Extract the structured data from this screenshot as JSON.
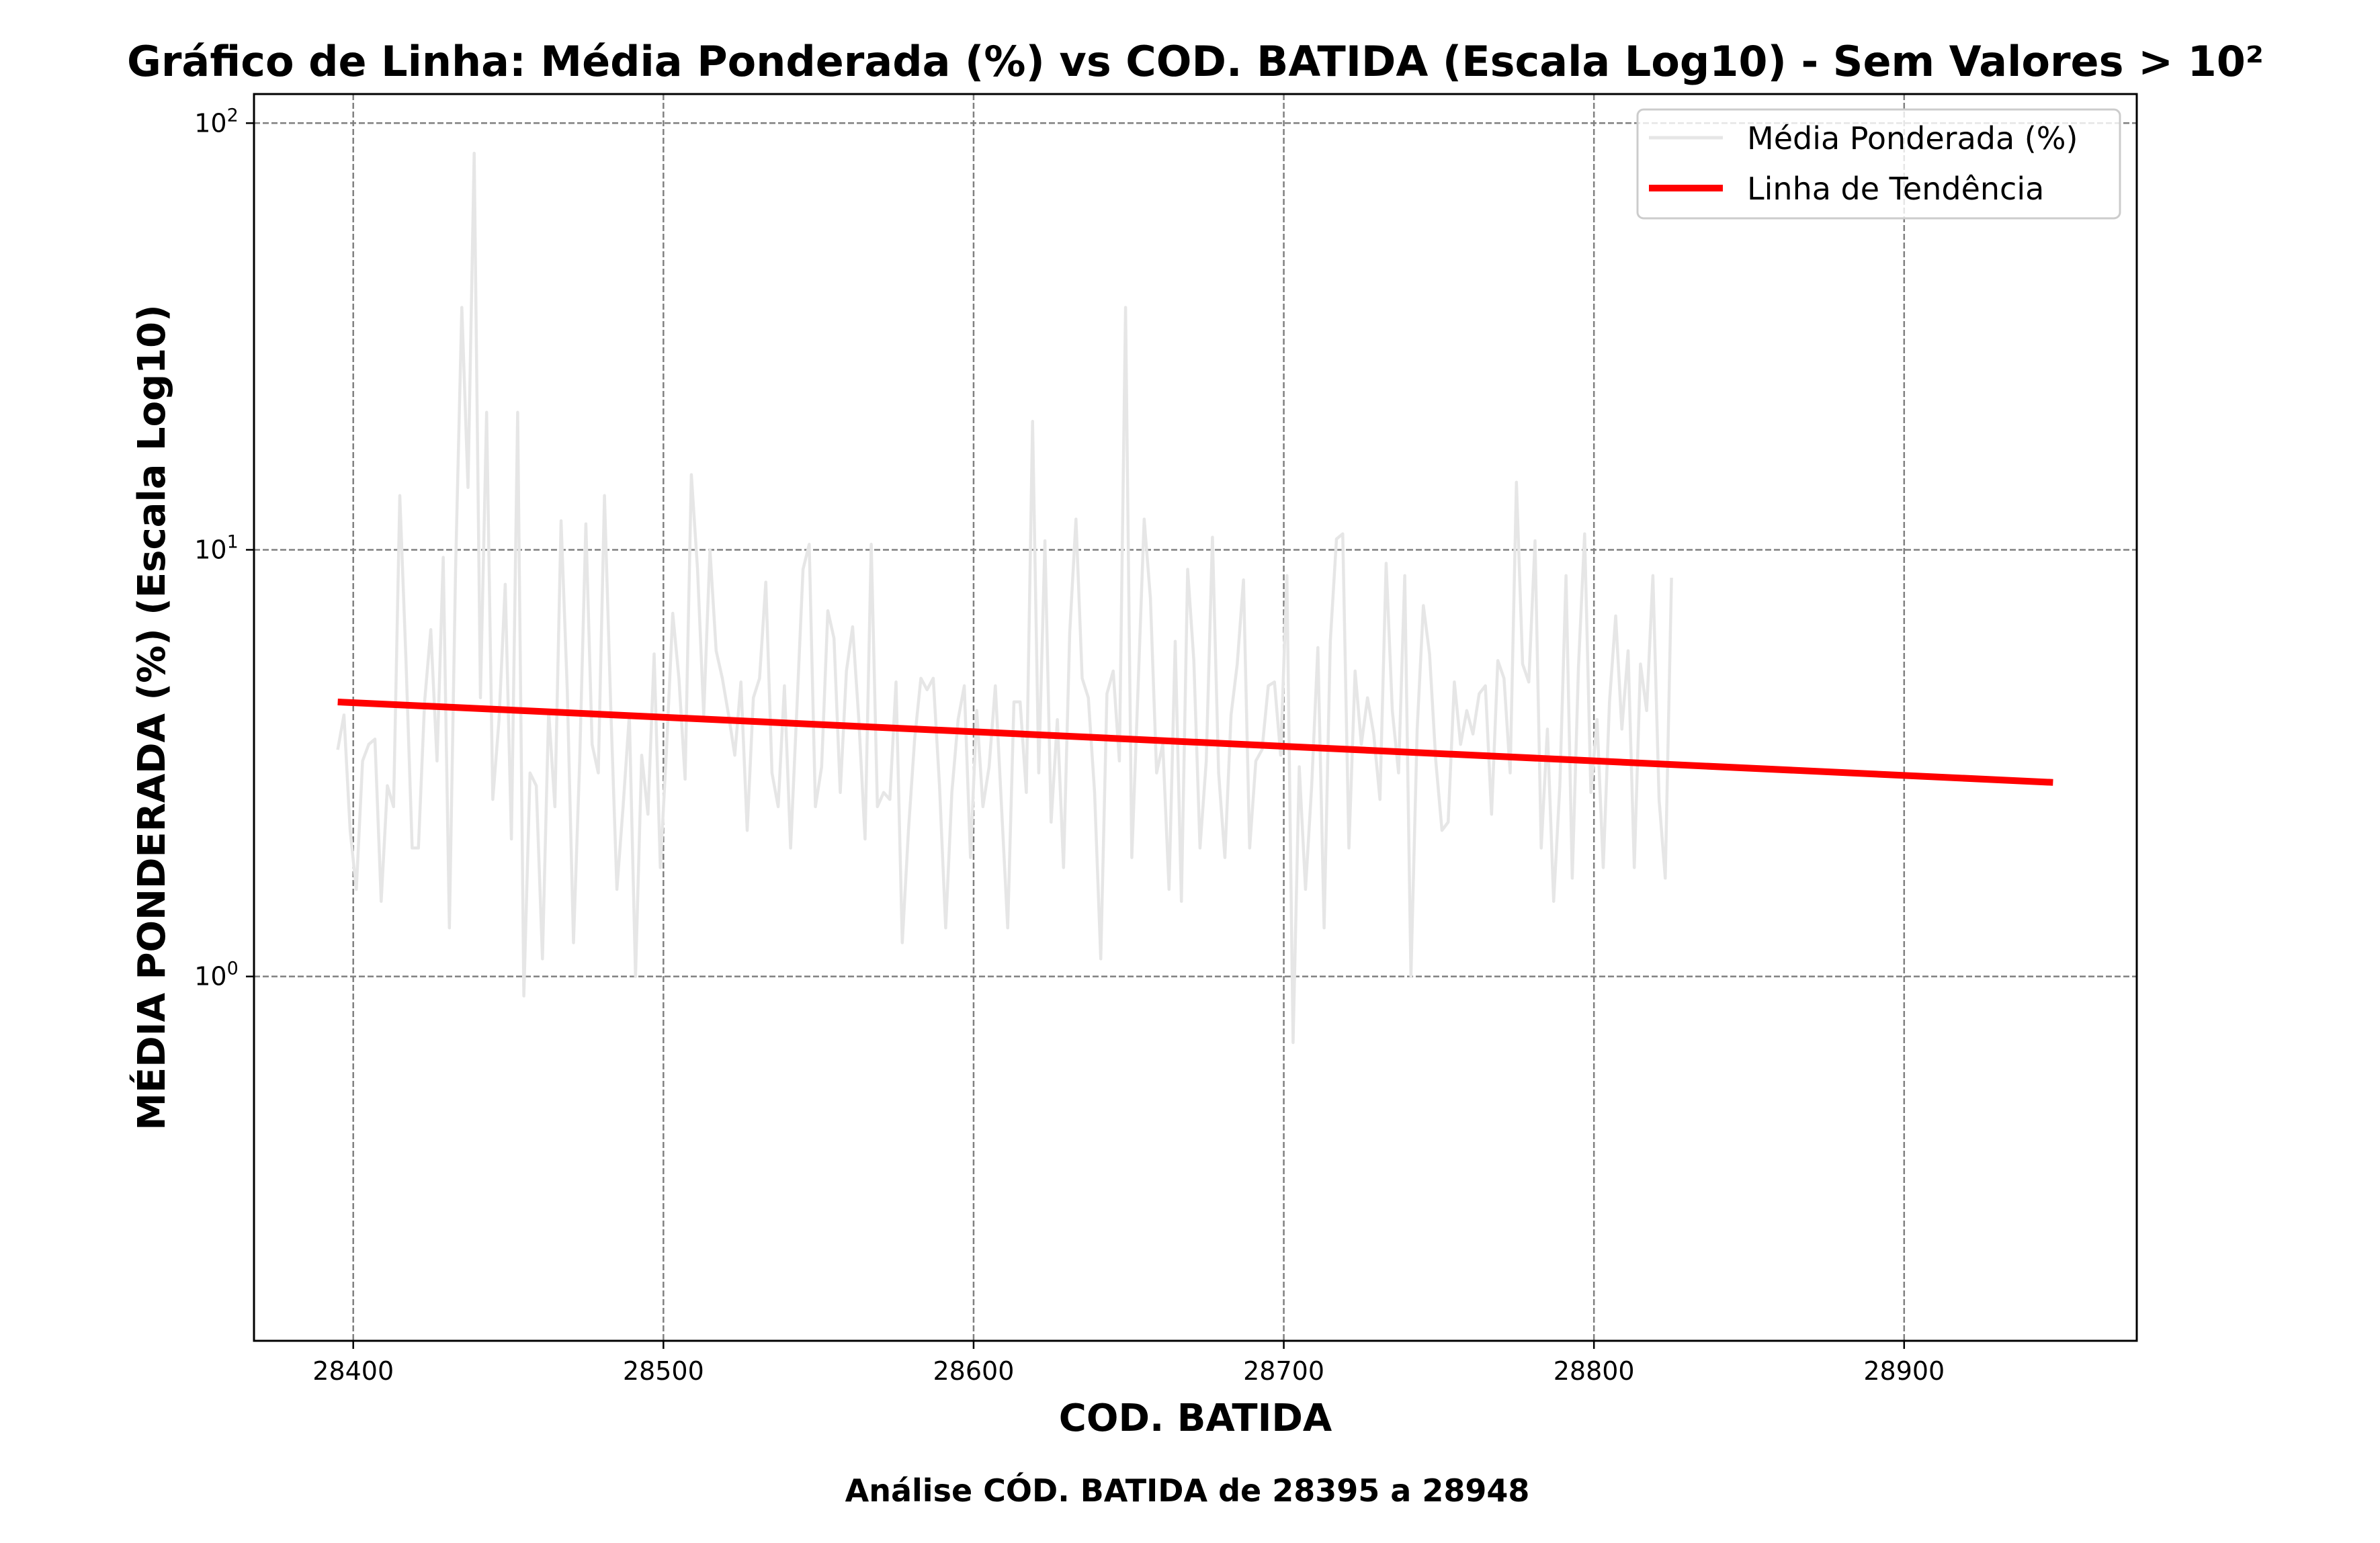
{
  "chart_data": {
    "type": "line",
    "title": "Gráfico de Linha: Média Ponderada (%) vs COD. BATIDA (Escala Log10) - Sem Valores > 10²",
    "xlabel": "COD. BATIDA",
    "ylabel": "MÉDIA PONDERADA (%) (Escala Log10)",
    "caption": "Análise CÓD. BATIDA de 28395 a 28948",
    "xlim": [
      28368,
      28975
    ],
    "ylim": [
      0.14,
      117
    ],
    "yscale": "log10",
    "grid": true,
    "legend_position": "top-right",
    "x_ticks": [
      "28400",
      "28500",
      "28600",
      "28700",
      "28800",
      "28900"
    ],
    "y_ticks": [
      {
        "value": 1,
        "base": "10",
        "exp": "0"
      },
      {
        "value": 10,
        "base": "10",
        "exp": "1"
      },
      {
        "value": 100,
        "base": "10",
        "exp": "2"
      }
    ],
    "series": [
      {
        "name": "Média Ponderada (%)",
        "color": "#e6e6e6",
        "x_start": 28395,
        "x_step": 2,
        "values": [
          3.4,
          4.1,
          2.2,
          1.6,
          3.2,
          3.5,
          3.6,
          1.5,
          2.8,
          2.5,
          13.4,
          5.5,
          2.0,
          2.0,
          4.4,
          6.5,
          3.2,
          9.6,
          1.3,
          9.0,
          37.0,
          14.0,
          85.0,
          4.5,
          21.0,
          2.6,
          4.0,
          8.3,
          2.1,
          21.0,
          0.9,
          3.0,
          2.8,
          1.1,
          4.2,
          2.5,
          11.7,
          4.7,
          1.2,
          3.2,
          11.5,
          3.5,
          3.0,
          13.4,
          4.3,
          1.6,
          2.5,
          4.1,
          1.0,
          3.3,
          2.4,
          5.7,
          1.8,
          3.4,
          7.1,
          5.0,
          2.9,
          15.0,
          9.0,
          4.1,
          10.0,
          5.8,
          5.0,
          4.1,
          3.3,
          4.9,
          2.2,
          4.5,
          5.0,
          8.4,
          3.0,
          2.5,
          4.8,
          2.0,
          4.2,
          9.0,
          10.3,
          2.5,
          3.1,
          7.2,
          6.2,
          2.7,
          5.2,
          6.6,
          4.0,
          2.1,
          10.3,
          2.5,
          2.7,
          2.6,
          4.9,
          1.2,
          2.2,
          3.6,
          5.0,
          4.7,
          5.0,
          2.8,
          1.3,
          2.7,
          4.0,
          4.8,
          1.9,
          4.2,
          2.5,
          3.1,
          4.8,
          2.5,
          1.3,
          4.4,
          4.4,
          2.7,
          20.0,
          3.0,
          10.5,
          2.3,
          4.0,
          1.8,
          6.4,
          11.8,
          5.0,
          4.5,
          2.7,
          1.1,
          4.6,
          5.2,
          3.2,
          37.0,
          1.9,
          4.7,
          11.8,
          7.7,
          3.0,
          3.5,
          1.6,
          6.1,
          1.5,
          9.0,
          5.5,
          2.0,
          3.2,
          10.7,
          3.0,
          1.9,
          4.1,
          5.4,
          8.5,
          2.0,
          3.2,
          3.4,
          4.8,
          4.9,
          3.3,
          8.7,
          0.7,
          3.1,
          1.6,
          2.8,
          5.9,
          1.3,
          6.1,
          10.6,
          10.9,
          2.0,
          5.2,
          3.5,
          4.5,
          3.7,
          2.6,
          9.3,
          4.2,
          3.0,
          8.7,
          1.0,
          3.8,
          7.4,
          5.7,
          3.2,
          2.2,
          2.3,
          4.9,
          3.5,
          4.2,
          3.7,
          4.6,
          4.8,
          2.4,
          5.5,
          5.0,
          3.0,
          14.4,
          5.4,
          4.9,
          10.5,
          2.0,
          3.8,
          1.5,
          2.8,
          8.7,
          1.7,
          5.3,
          10.9,
          2.7,
          4.0,
          1.8,
          4.4,
          7.0,
          3.8,
          5.8,
          1.8,
          5.4,
          4.2,
          8.7,
          2.6,
          1.7,
          8.6
        ],
        "trend_note": "series continues to 28948"
      },
      {
        "name": "Linha de Tendência",
        "color": "#ff0000",
        "x": [
          28395,
          28948
        ],
        "y": [
          4.4,
          2.85
        ]
      }
    ]
  }
}
